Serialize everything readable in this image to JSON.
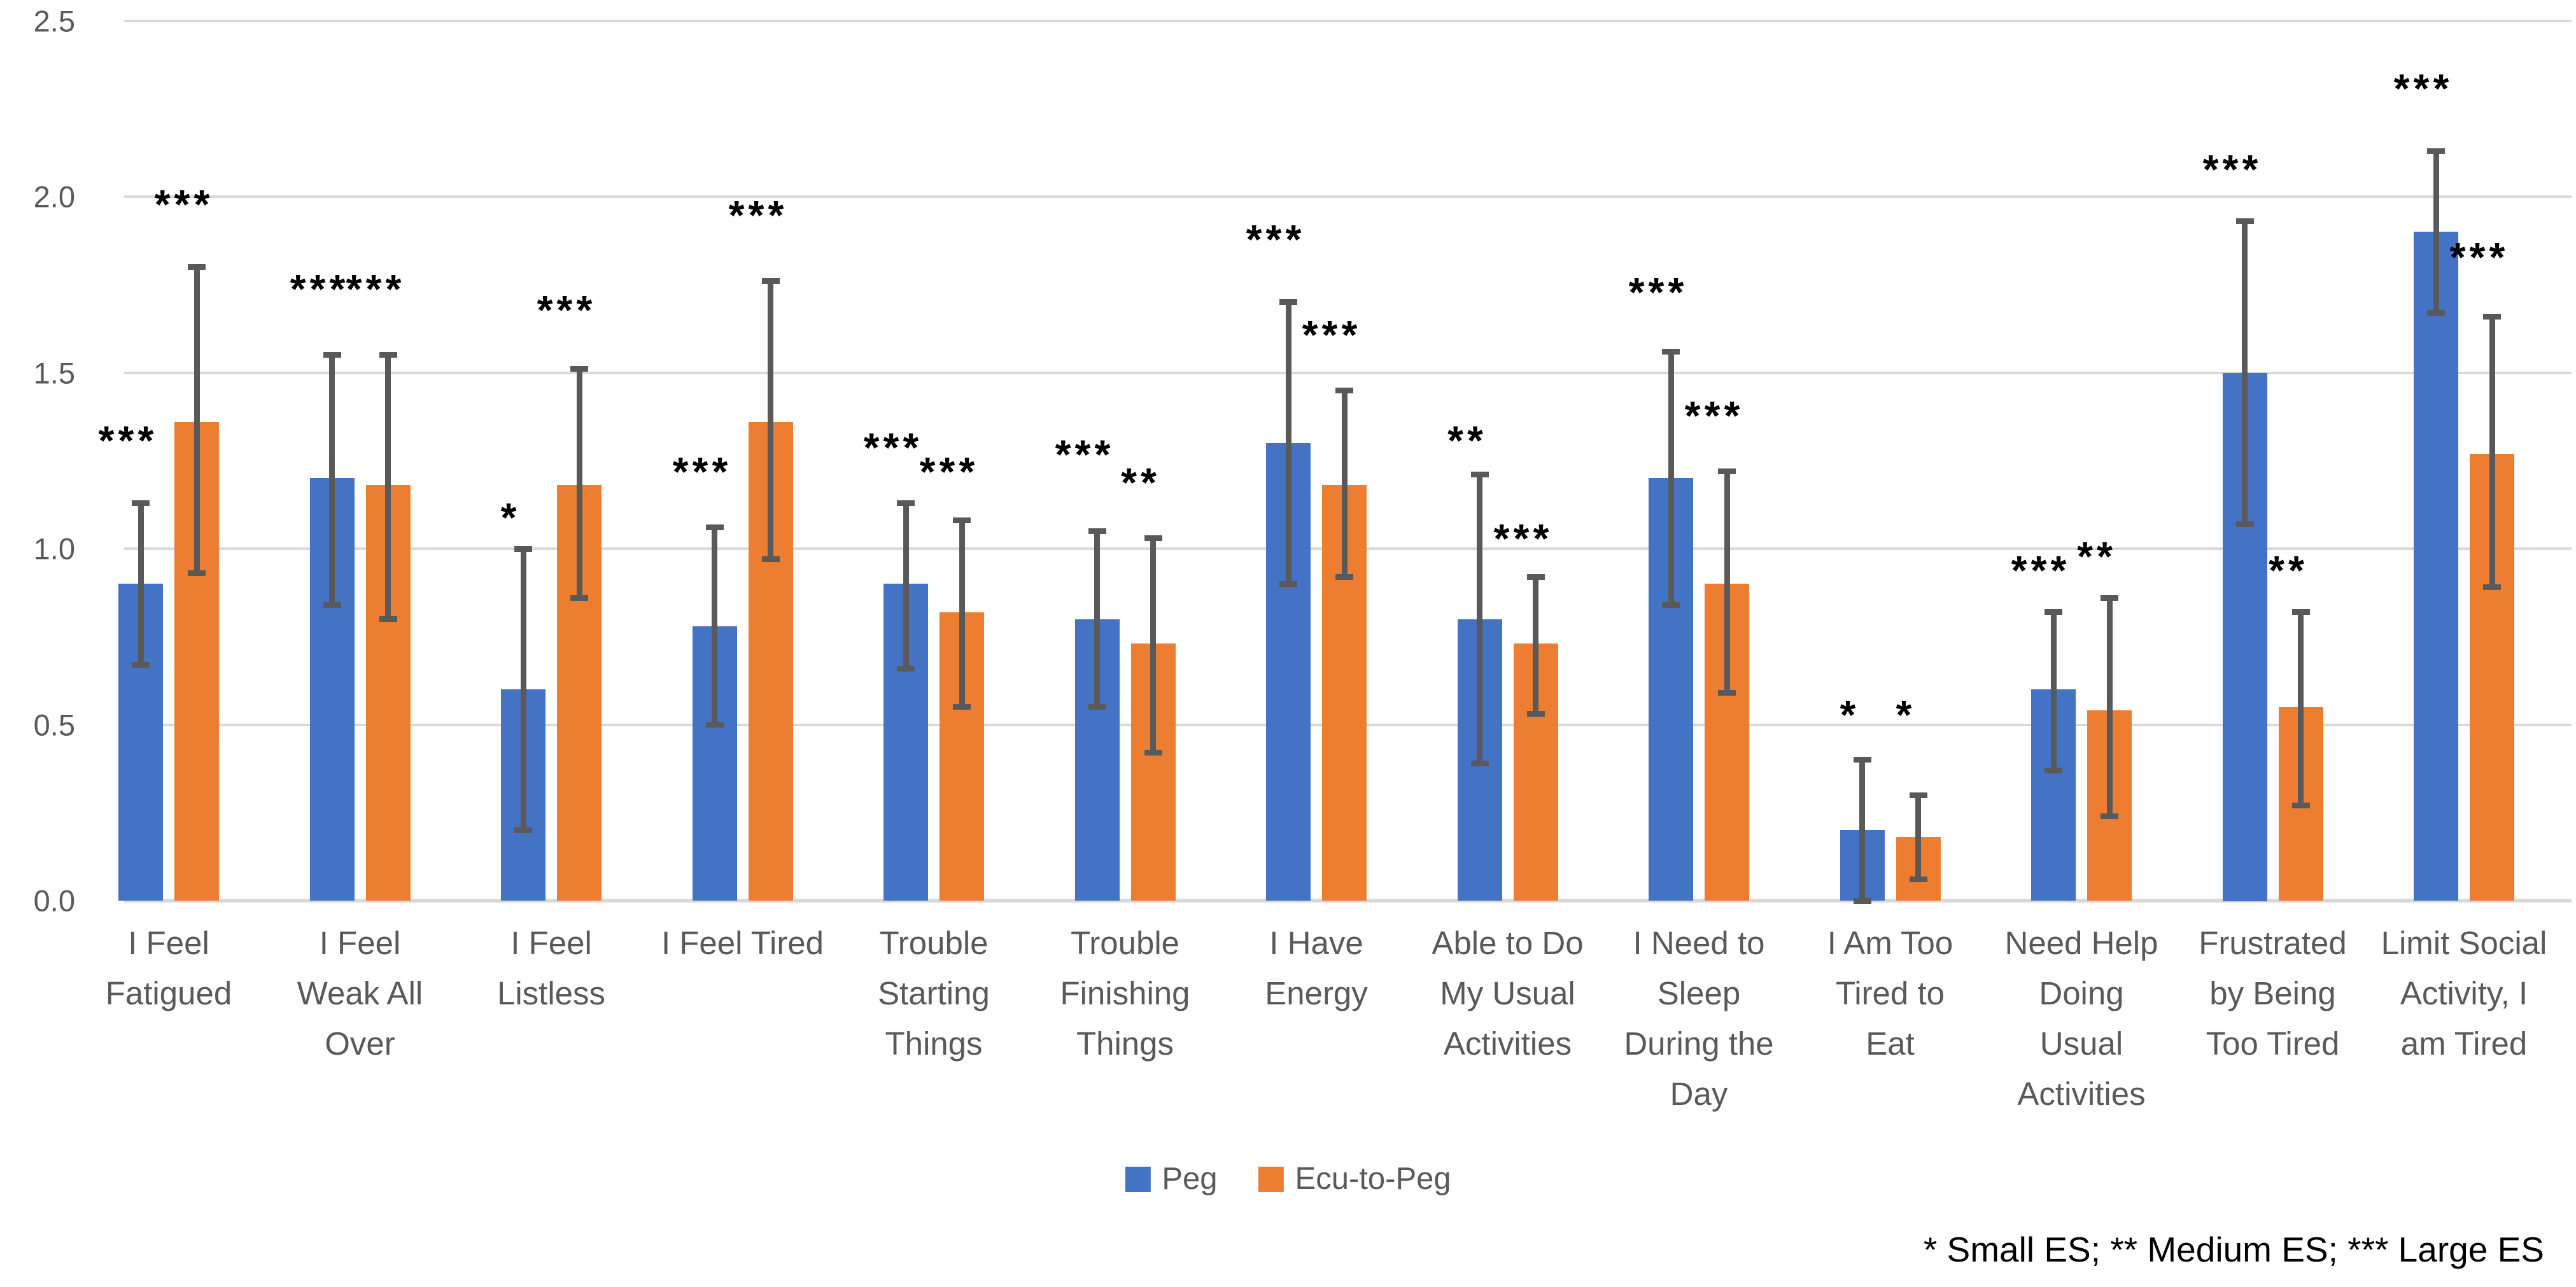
{
  "chart_data": {
    "type": "bar",
    "title": "",
    "xlabel": "",
    "ylabel": "",
    "ylim": [
      0,
      2.5
    ],
    "grid": true,
    "legend_position": "bottom",
    "yticks": [
      0,
      0.5,
      1.0,
      1.5,
      2.0,
      2.5
    ],
    "ytick_labels": [
      "0.0",
      "0.5",
      "1.0",
      "1.5",
      "2.0",
      "2.5"
    ],
    "categories": [
      "I Feel Fatigued",
      "I Feel Weak All Over",
      "I Feel Listless",
      "I Feel Tired",
      "Trouble Starting Things",
      "Trouble Finishing Things",
      "I Have Energy",
      "Able to Do My Usual Activities",
      "I Need to Sleep During the Day",
      "I Am Too Tired to Eat",
      "Need Help Doing Usual Activities",
      "Frustrated by Being Too Tired",
      "Limit Social Activity, I am Tired"
    ],
    "category_lines": [
      [
        "I Feel",
        "Fatigued"
      ],
      [
        "I Feel",
        "Weak All",
        "Over"
      ],
      [
        "I Feel",
        "Listless"
      ],
      [
        "I Feel Tired"
      ],
      [
        "Trouble",
        "Starting",
        "Things"
      ],
      [
        "Trouble",
        "Finishing",
        "Things"
      ],
      [
        "I Have",
        "Energy"
      ],
      [
        "Able to Do",
        "My Usual",
        "Activities"
      ],
      [
        "I Need to",
        "Sleep",
        "During the",
        "Day"
      ],
      [
        "I Am Too",
        "Tired to",
        "Eat"
      ],
      [
        "Need Help",
        "Doing",
        "Usual",
        "Activities"
      ],
      [
        "Frustrated",
        "by Being",
        "Too Tired"
      ],
      [
        "Limit Social",
        "Activity, I",
        "am Tired"
      ]
    ],
    "series": [
      {
        "name": "Peg",
        "color": "#4472C4",
        "values": [
          0.9,
          1.2,
          0.6,
          0.78,
          0.9,
          0.8,
          1.3,
          0.8,
          1.2,
          0.2,
          0.6,
          1.5,
          1.9
        ],
        "err_low": [
          0.67,
          0.84,
          0.2,
          0.5,
          0.66,
          0.55,
          0.9,
          0.39,
          0.84,
          0.0,
          0.37,
          1.07,
          1.67
        ],
        "err_high": [
          1.13,
          1.55,
          1.0,
          1.06,
          1.13,
          1.05,
          1.7,
          1.21,
          1.56,
          0.4,
          0.82,
          1.93,
          2.13
        ],
        "stars": [
          "***",
          "***",
          "*",
          "***",
          "***",
          "***",
          "***",
          "**",
          "***",
          "*",
          "***",
          "***",
          "***"
        ],
        "star_y": [
          1.33,
          1.76,
          1.11,
          1.24,
          1.31,
          1.29,
          1.9,
          1.33,
          1.75,
          0.55,
          0.96,
          2.1,
          2.33
        ]
      },
      {
        "name": "Ecu-to-Peg",
        "color": "#ED7D31",
        "values": [
          1.36,
          1.18,
          1.18,
          1.36,
          0.82,
          0.73,
          1.18,
          0.73,
          0.9,
          0.18,
          0.54,
          0.55,
          1.27
        ],
        "err_low": [
          0.93,
          0.8,
          0.86,
          0.97,
          0.55,
          0.42,
          0.92,
          0.53,
          0.59,
          0.06,
          0.24,
          0.27,
          0.89
        ],
        "err_high": [
          1.8,
          1.55,
          1.51,
          1.76,
          1.08,
          1.03,
          1.45,
          0.92,
          1.22,
          0.3,
          0.86,
          0.82,
          1.66
        ],
        "stars": [
          "***",
          "***",
          "***",
          "***",
          "***",
          "**",
          "***",
          "***",
          "***",
          "*",
          "**",
          "**",
          "***"
        ],
        "star_y": [
          2.0,
          1.76,
          1.7,
          1.97,
          1.24,
          1.21,
          1.63,
          1.05,
          1.4,
          0.55,
          1.0,
          0.96,
          1.85
        ]
      }
    ],
    "footnote": "* Small ES; ** Medium ES; *** Large ES"
  },
  "legend": {
    "items": [
      {
        "label": "Peg",
        "color": "#4472C4"
      },
      {
        "label": "Ecu-to-Peg",
        "color": "#ED7D31"
      }
    ]
  },
  "colors": {
    "error_bar": "#595959",
    "gridline": "#D9D9D9",
    "axis_text": "#595959",
    "stars": "#000000",
    "background": "#FFFFFF"
  }
}
